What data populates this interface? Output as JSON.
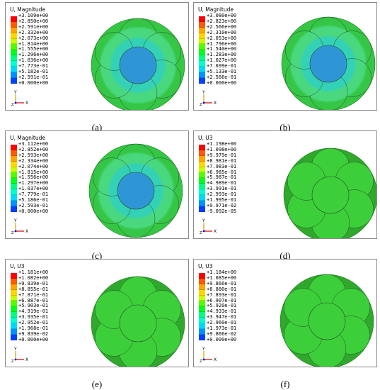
{
  "panels": [
    {
      "id": "a",
      "caption": "(a)",
      "legend_title": "U, Magnitude",
      "legend_values": [
        "+3.109e+00",
        "+2.850e+00",
        "+2.591e+00",
        "+2.332e+00",
        "+2.073e+00",
        "+1.814e+00",
        "+1.555e+00",
        "+1.296e+00",
        "+1.036e+00",
        "+7.773e-01",
        "+5.182e-01",
        "+2.591e-01",
        "+0.000e+00"
      ],
      "core_color": "#2f96d6",
      "ring_color": "#33d1b6",
      "outer_color": "#35c645",
      "mid_color": "#4ad87f",
      "wire_style": "bands"
    },
    {
      "id": "b",
      "caption": "(b)",
      "legend_title": "U, Magnitude",
      "legend_values": [
        "+3.080e+00",
        "+2.823e+00",
        "+2.566e+00",
        "+2.310e+00",
        "+2.053e+00",
        "+1.796e+00",
        "+1.540e+00",
        "+1.283e+00",
        "+1.027e+00",
        "+7.699e-01",
        "+5.133e-01",
        "+2.566e-01",
        "+0.000e+00"
      ],
      "core_color": "#2f96d6",
      "ring_color": "#33d1b6",
      "outer_color": "#35c645",
      "mid_color": "#4ad87f",
      "wire_style": "bands"
    },
    {
      "id": "c",
      "caption": "(c)",
      "legend_title": "U, Magnitude",
      "legend_values": [
        "+3.112e+00",
        "+2.852e+00",
        "+2.593e+00",
        "+2.334e+00",
        "+2.074e+00",
        "+1.815e+00",
        "+1.556e+00",
        "+1.297e+00",
        "+1.037e+00",
        "+7.779e-01",
        "+5.186e-01",
        "+2.593e-01",
        "+0.000e+00"
      ],
      "core_color": "#2f96d6",
      "ring_color": "#33d1b6",
      "outer_color": "#35c645",
      "mid_color": "#4ad87f",
      "wire_style": "bands"
    },
    {
      "id": "d",
      "caption": "(d)",
      "legend_title": "U, U3",
      "legend_values": [
        "+1.198e+00",
        "+1.098e+00",
        "+9.979e-01",
        "+8.981e-01",
        "+7.983e-01",
        "+6.985e-01",
        "+5.987e-01",
        "+4.989e-01",
        "+3.991e-01",
        "+2.993e-01",
        "+1.995e-01",
        "+9.971e-02",
        "-9.092e-05"
      ],
      "core_color": "#3ccf3a",
      "ring_color": "#3ccf3a",
      "outer_color": "#2fa82c",
      "mid_color": "#3ccf3a",
      "wire_style": "flat"
    },
    {
      "id": "e",
      "caption": "(e)",
      "legend_title": "U, U3",
      "legend_values": [
        "+1.181e+00",
        "+1.082e+00",
        "+9.839e-01",
        "+8.855e-01",
        "+7.871e-01",
        "+6.887e-01",
        "+5.903e-01",
        "+4.919e-01",
        "+3.935e-01",
        "+2.952e-01",
        "+1.968e-01",
        "+9.839e-02",
        "+0.000e+00"
      ],
      "core_color": "#3ccf3a",
      "ring_color": "#3ccf3a",
      "outer_color": "#2fa82c",
      "mid_color": "#3ccf3a",
      "wire_style": "flat"
    },
    {
      "id": "f",
      "caption": "(f)",
      "legend_title": "U, U3",
      "legend_values": [
        "+1.184e+00",
        "+1.085e+00",
        "+9.866e-01",
        "+8.880e-01",
        "+7.893e-01",
        "+6.907e-01",
        "+5.920e-01",
        "+4.933e-01",
        "+3.947e-01",
        "+2.960e-01",
        "+1.973e-01",
        "+9.866e-02",
        "+0.000e+00"
      ],
      "core_color": "#3ccf3a",
      "ring_color": "#3ccf3a",
      "outer_color": "#2fa82c",
      "mid_color": "#3ccf3a",
      "wire_style": "flat"
    }
  ],
  "legend_colors": [
    "#ff0000",
    "#ff5a00",
    "#ffa500",
    "#ffd700",
    "#c8ff00",
    "#50ff00",
    "#00ff20",
    "#00ff80",
    "#00ffd0",
    "#00d8ff",
    "#0090ff",
    "#0040ff",
    "#0000c8"
  ],
  "triad": {
    "y_label": "Y",
    "x_label": "X",
    "z_label": "Z"
  }
}
